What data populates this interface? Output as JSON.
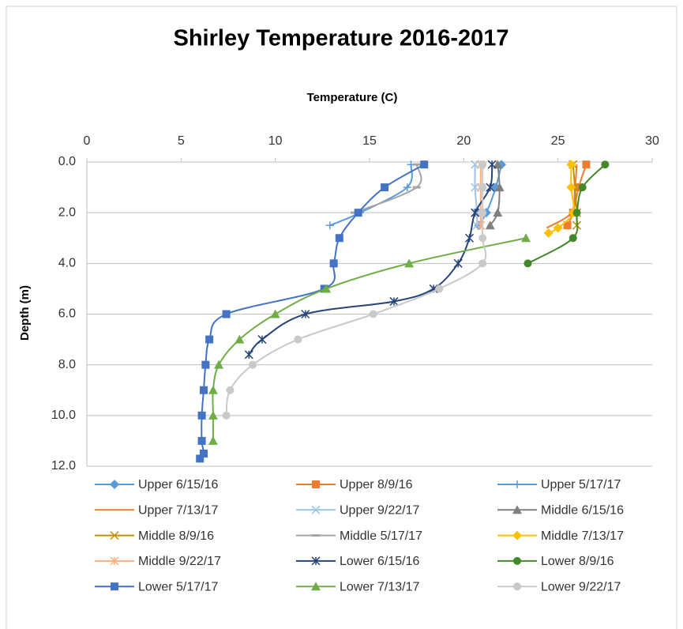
{
  "chart_data": {
    "type": "scatter",
    "title": "Shirley Temperature 2016-2017",
    "x_label": "Temperature (C)",
    "y_label": "Depth (m)",
    "xlim": [
      0,
      30
    ],
    "xticks": [
      0,
      5,
      10,
      15,
      20,
      25,
      30
    ],
    "ylim": [
      0,
      12
    ],
    "yticks": [
      {
        "value": 0,
        "label": "0.0"
      },
      {
        "value": 2,
        "label": "2.0"
      },
      {
        "value": 4,
        "label": "4.0"
      },
      {
        "value": 6,
        "label": "6.0"
      },
      {
        "value": 8,
        "label": "8.0"
      },
      {
        "value": 10,
        "label": "10.0"
      },
      {
        "value": 12,
        "label": "12.0"
      }
    ],
    "y_inverted": true,
    "x_axis_position": "top",
    "grid": true,
    "smooth": true,
    "legend": "bottom",
    "series": [
      {
        "name": "Upper 6/15/16",
        "color": "#5b9bd5",
        "marker": "diamond",
        "x": [
          22.0,
          21.7,
          21.2,
          20.8
        ],
        "values": [
          0.1,
          1,
          2,
          2.5
        ]
      },
      {
        "name": "Upper 8/9/16",
        "color": "#ed7d31",
        "marker": "square",
        "x": [
          26.5,
          26.1,
          25.8,
          25.5
        ],
        "values": [
          0.1,
          1,
          2,
          2.5
        ]
      },
      {
        "name": "Upper 5/17/17",
        "color": "#5b9bd5",
        "marker": "plus",
        "x": [
          17.2,
          17.0,
          14.5,
          12.9
        ],
        "values": [
          0.1,
          1,
          2,
          2.5
        ]
      },
      {
        "name": "Upper 7/13/17",
        "color": "#ed7d31",
        "marker": "none",
        "x": [
          26.0,
          25.9,
          25.7,
          24.4
        ],
        "values": [
          0.1,
          1,
          2,
          2.6
        ]
      },
      {
        "name": "Upper 9/22/17",
        "color": "#9dc3e6",
        "marker": "x",
        "x": [
          20.6,
          20.6,
          20.7,
          20.7
        ],
        "values": [
          0.1,
          1,
          2,
          2.5
        ]
      },
      {
        "name": "Middle 6/15/16",
        "color": "#808080",
        "marker": "triangle",
        "x": [
          21.8,
          21.9,
          21.8,
          21.4
        ],
        "values": [
          0.1,
          1,
          2,
          2.5
        ]
      },
      {
        "name": "Middle 8/9/16",
        "color": "#c09000",
        "marker": "x",
        "x": [
          25.8,
          25.9,
          26.0,
          26.0
        ],
        "values": [
          0.1,
          1,
          2,
          2.5
        ]
      },
      {
        "name": "Middle 5/17/17",
        "color": "#a5a5a5",
        "marker": "dash",
        "x": [
          17.5,
          17.5,
          14.2
        ],
        "values": [
          0.1,
          1,
          2
        ]
      },
      {
        "name": "Middle 7/13/17",
        "color": "#ffc000",
        "marker": "diamond",
        "x": [
          25.7,
          25.7,
          25.8,
          25.0,
          24.5
        ],
        "values": [
          0.1,
          1,
          2,
          2.6,
          2.8
        ]
      },
      {
        "name": "Middle 9/22/17",
        "color": "#f4b183",
        "marker": "asterisk",
        "x": [
          20.9,
          20.9,
          20.9,
          20.9
        ],
        "values": [
          0.1,
          1,
          2,
          2.5
        ]
      },
      {
        "name": "Lower 6/15/16",
        "color": "#264478",
        "marker": "asterisk",
        "x": [
          21.5,
          21.4,
          20.6,
          20.3,
          19.7,
          18.4,
          16.3,
          11.6,
          9.3,
          8.6
        ],
        "values": [
          0.1,
          1,
          2,
          3,
          4,
          5,
          5.5,
          6,
          7,
          7.6
        ]
      },
      {
        "name": "Lower 8/9/16",
        "color": "#43892b",
        "marker": "circle",
        "x": [
          27.5,
          26.3,
          26.0,
          25.8,
          23.4
        ],
        "values": [
          0.1,
          1,
          2,
          3,
          4
        ]
      },
      {
        "name": "Lower 5/17/17",
        "color": "#4472c4",
        "marker": "square",
        "x": [
          17.9,
          15.8,
          14.4,
          13.4,
          13.1,
          12.6,
          7.4,
          6.5,
          6.3,
          6.2,
          6.1,
          6.1,
          6.2,
          6.0
        ],
        "values": [
          0.1,
          1,
          2,
          3,
          4,
          5,
          6,
          7,
          8,
          9,
          10,
          11,
          11.5,
          11.7
        ]
      },
      {
        "name": "Lower 7/13/17",
        "color": "#70ad47",
        "marker": "triangle",
        "x": [
          23.3,
          17.1,
          12.7,
          10.0,
          8.1,
          7.0,
          6.7,
          6.7,
          6.7
        ],
        "values": [
          3,
          4,
          5,
          6,
          7,
          8,
          9,
          10,
          11
        ]
      },
      {
        "name": "Lower 9/22/17",
        "color": "#c9c9c9",
        "marker": "circle",
        "x": [
          21.0,
          21.0,
          21.0,
          21.0,
          21.0,
          18.7,
          15.2,
          11.2,
          8.8,
          7.6,
          7.4
        ],
        "values": [
          0.1,
          1,
          2,
          3,
          4,
          5,
          6,
          7,
          8,
          9,
          10
        ]
      }
    ]
  }
}
